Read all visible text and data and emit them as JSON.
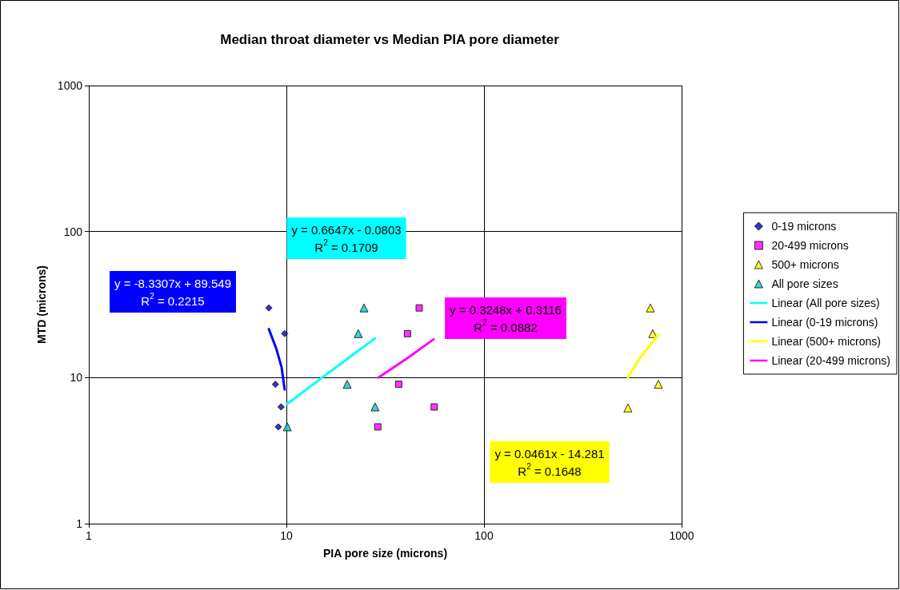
{
  "chart_data": {
    "type": "scatter",
    "title": "Median throat diameter vs Median PIA pore diameter",
    "xlabel": "PIA pore size (microns)",
    "ylabel": "MTD (microns)",
    "log": "xy",
    "grid": true,
    "legend": "right",
    "xlim": [
      1,
      1000
    ],
    "ylim": [
      1,
      1000
    ],
    "xticks": [
      1,
      10,
      100,
      1000
    ],
    "yticks": [
      1,
      10,
      100,
      1000
    ],
    "series": [
      {
        "name": "0-19 microns",
        "marker": "diamond",
        "color": "#0000cc",
        "x": [
          8.15,
          9.8,
          8.8,
          9.4,
          9.1
        ],
        "values": [
          30,
          20,
          9,
          6.3,
          4.6
        ]
      },
      {
        "name": "20-499 microns",
        "marker": "square",
        "color": "#ff00ff",
        "x": [
          47,
          41,
          37,
          56,
          29
        ],
        "values": [
          30,
          20,
          9,
          6.3,
          4.6
        ]
      },
      {
        "name": "500+ microns",
        "marker": "triangle",
        "color": "#ffff00",
        "x": [
          695,
          714,
          763,
          535
        ],
        "values": [
          30,
          20,
          9,
          6.2
        ]
      },
      {
        "name": "All pore sizes",
        "marker": "triangle",
        "color": "#00cccc",
        "x": [
          24.7,
          23.1,
          20.3,
          28.1,
          10.1
        ],
        "values": [
          30,
          20,
          9,
          6.3,
          4.6
        ]
      },
      {
        "name": "Linear (All pore sizes)",
        "type": "line",
        "marker": "none",
        "color": "#00ffff",
        "x": [
          10.1,
          15,
          20,
          28.1
        ],
        "values": [
          6.6,
          9.9,
          13.2,
          18.6
        ]
      },
      {
        "name": "Linear (0-19 microns)",
        "type": "line",
        "marker": "none",
        "color": "#0000ff",
        "x": [
          8.15,
          8.9,
          9.45,
          9.8
        ],
        "values": [
          21.5,
          15.7,
          11.8,
          8.3
        ]
      },
      {
        "name": "Linear (500+ microns)",
        "type": "line",
        "marker": "none",
        "color": "#ffff00",
        "x": [
          535,
          610,
          763
        ],
        "values": [
          10,
          13.4,
          19.7
        ]
      },
      {
        "name": "Linear (20-499 microns)",
        "type": "line",
        "marker": "none",
        "color": "#ff00ff",
        "x": [
          29.2,
          40,
          55.6
        ],
        "values": [
          10,
          13.3,
          18.3
        ]
      }
    ],
    "annotations": [
      "y = 0.6647x - 0.0803\nR$^{2}$ = 0.1709",
      "y = -8.3307x + 89.549\nR$^{2}$ = 0.2215",
      "y = 0.3248x + 0.3116\nR$^{2}$ = 0.0882",
      "y = 0.0461x - 14.281\nR$^{2}$ = 0.1648"
    ]
  }
}
